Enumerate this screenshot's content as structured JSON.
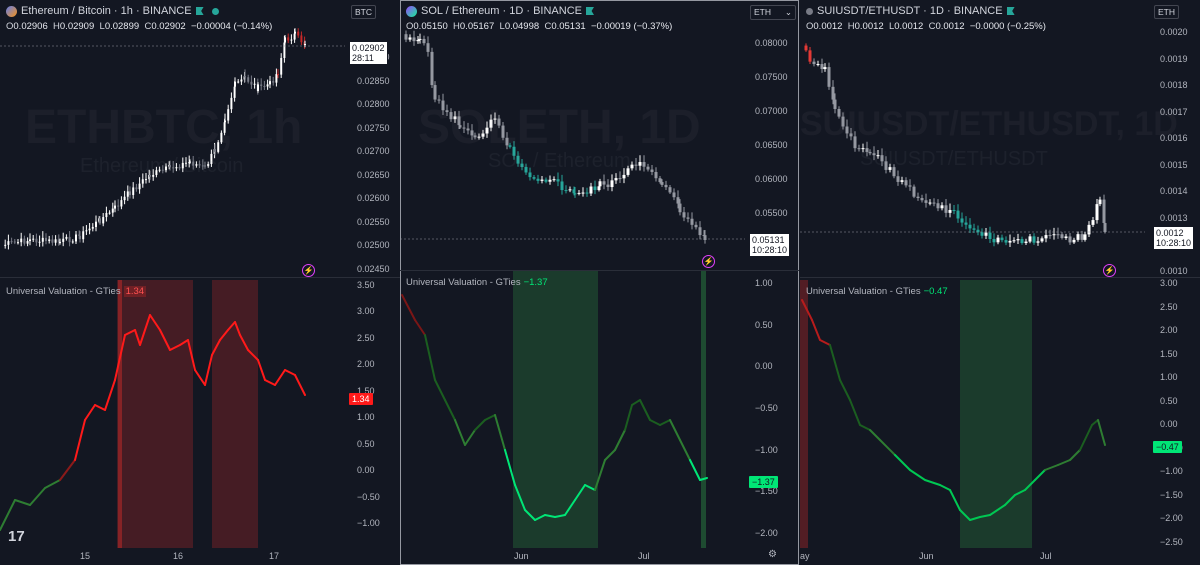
{
  "colors": {
    "bg": "#131722",
    "up": "#ffffff",
    "down_red": "#b71c1c",
    "down_green": "#26a69a",
    "ind_red": "#ff1a1a",
    "ind_green": "#00e676",
    "shade_red": "rgba(178,40,40,0.35)",
    "shade_green": "rgba(38,110,60,0.42)"
  },
  "panels": [
    {
      "key": "p1",
      "title": "Ethereum / Bitcoin · 1h · BINANCE",
      "icon": "eth-btc-coin-icon",
      "ohlc": {
        "o": "O",
        "o_val": "0.02906",
        "h": "H",
        "h_val": "0.02909",
        "l": "L",
        "l_val": "0.02899",
        "c": "C",
        "c_val": "0.02902",
        "chg": "−0.00004 (−0.14%)"
      },
      "currency": "BTC",
      "watermark": "ETHBTC, 1h",
      "watermark_sub": "Ethereum / Bitcoin",
      "price_axis": [
        "0.02900",
        "0.02850",
        "0.02800",
        "0.02750",
        "0.02700",
        "0.02650",
        "0.02600",
        "0.02550",
        "0.02500",
        "0.02450"
      ],
      "last_price": "0.02902",
      "countdown": "28:11",
      "indicator": {
        "label": "Universal Valuation - GTies",
        "value": "1.34",
        "axis": [
          "3.50",
          "3.00",
          "2.50",
          "2.00",
          "1.50",
          "1.00",
          "0.50",
          "0.00",
          "−0.50",
          "−1.00"
        ]
      },
      "x_axis": [
        "15",
        "16",
        "17"
      ]
    },
    {
      "key": "p2",
      "title": "SOL / Ethereum · 1D · BINANCE",
      "icon": "sol-eth-coin-icon",
      "ohlc": {
        "o": "O",
        "o_val": "0.05150",
        "h": "H",
        "h_val": "0.05167",
        "l": "L",
        "l_val": "0.04998",
        "c": "C",
        "c_val": "0.05131",
        "chg": "−0.00019 (−0.37%)"
      },
      "currency": "ETH",
      "watermark": "SOLETH, 1D",
      "watermark_sub": "SOL / Ethereum",
      "price_axis": [
        "0.08000",
        "0.07500",
        "0.07000",
        "0.06500",
        "0.06000",
        "0.05500"
      ],
      "last_price": "0.05131",
      "countdown": "10:28:10",
      "indicator": {
        "label": "Universal Valuation - GTies",
        "value": "−1.37",
        "axis": [
          "1.00",
          "0.50",
          "0.00",
          "−0.50",
          "−1.00",
          "−1.50",
          "−2.00"
        ]
      },
      "x_axis": [
        "Jun",
        "Jul"
      ]
    },
    {
      "key": "p3",
      "title": "SUIUSDT/ETHUSDT · 1D · BINANCE",
      "icon": "",
      "ohlc": {
        "o": "O",
        "o_val": "0.0012",
        "h": "H",
        "h_val": "0.0012",
        "l": "L",
        "l_val": "0.0012",
        "c": "C",
        "c_val": "0.0012",
        "chg": "−0.0000 (−0.25%)"
      },
      "currency": "ETH",
      "watermark": "SUIUSDT/ETHUSDT, 1D",
      "watermark_sub": "SUIUSDT/ETHUSDT",
      "price_axis": [
        "0.0020",
        "0.0019",
        "0.0018",
        "0.0017",
        "0.0016",
        "0.0015",
        "0.0014",
        "0.0013",
        "0.0011",
        "0.0010"
      ],
      "last_price": "0.0012",
      "countdown": "10:28:10",
      "indicator": {
        "label": "Universal Valuation - GTies",
        "value": "−0.47",
        "axis": [
          "3.00",
          "2.50",
          "2.00",
          "1.50",
          "1.00",
          "0.50",
          "0.00",
          "−0.50",
          "−1.00",
          "−1.50",
          "−2.00",
          "−2.50"
        ]
      },
      "x_axis": [
        "ay",
        "Jun",
        "Jul"
      ]
    }
  ],
  "tv_logo": "17"
}
